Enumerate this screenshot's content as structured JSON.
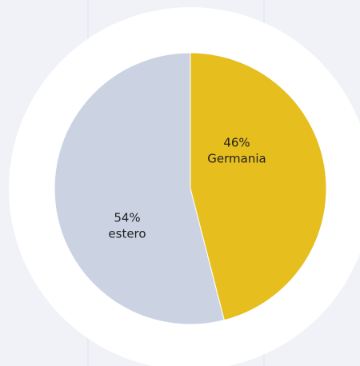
{
  "chart_data": {
    "type": "pie",
    "categories": [
      "Germania",
      "estero"
    ],
    "values": [
      46,
      54
    ],
    "value_labels": [
      "46%",
      "54%"
    ],
    "colors": [
      "#e6be1e",
      "#cbd3e3"
    ]
  }
}
